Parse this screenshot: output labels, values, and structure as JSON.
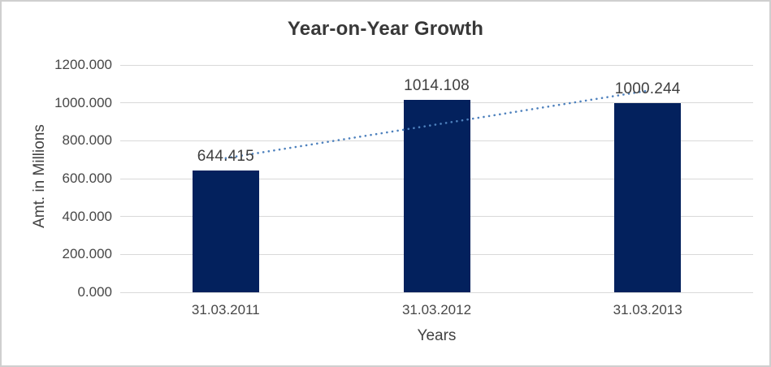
{
  "window": {
    "background": "#FFFFFF",
    "border_color": "#CFCFCF"
  },
  "chart_data": {
    "type": "bar",
    "title": "Year-on-Year Growth",
    "xlabel": "Years",
    "ylabel": "Amt. in Millions",
    "categories": [
      "31.03.2011",
      "31.03.2012",
      "31.03.2013"
    ],
    "values": [
      644.415,
      1014.108,
      1000.244
    ],
    "data_labels": [
      "644.415",
      "1014.108",
      "1000.244"
    ],
    "ylim": [
      0,
      1200
    ],
    "yticks": [
      0,
      200,
      400,
      600,
      800,
      1000,
      1200
    ],
    "ytick_labels": [
      "0.000",
      "200.000",
      "400.000",
      "600.000",
      "800.000",
      "1000.000",
      "1200.000"
    ],
    "grid": true,
    "legend": "none",
    "bar_color": "#03215D",
    "gridline_color": "#D9D9D9",
    "title_color": "#383838",
    "axis_text_color": "#474747",
    "trendline": {
      "type": "linear",
      "style": "dotted",
      "color": "#4E81BD",
      "start_value": 708,
      "end_value": 1064
    }
  }
}
